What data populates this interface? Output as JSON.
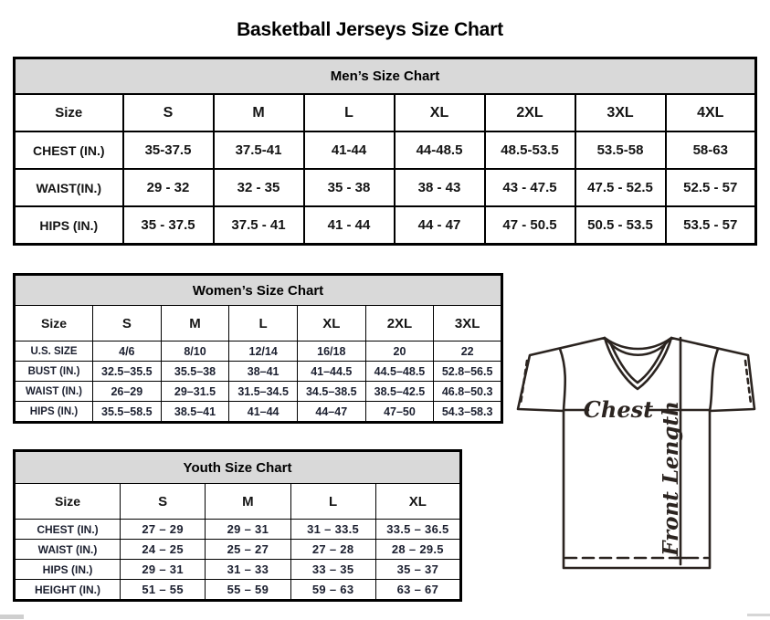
{
  "title": "Basketball Jerseys Size Chart",
  "tables": {
    "men": {
      "title": "Men’s Size Chart",
      "columns": [
        "Size",
        "S",
        "M",
        "L",
        "XL",
        "2XL",
        "3XL",
        "4XL"
      ],
      "rows": [
        {
          "label": "CHEST (IN.)",
          "values": [
            "35-37.5",
            "37.5-41",
            "41-44",
            "44-48.5",
            "48.5-53.5",
            "53.5-58",
            "58-63"
          ]
        },
        {
          "label": "WAIST(IN.)",
          "values": [
            "29 - 32",
            "32 - 35",
            "35 - 38",
            "38 - 43",
            "43 - 47.5",
            "47.5 - 52.5",
            "52.5 - 57"
          ]
        },
        {
          "label": "HIPS (IN.)",
          "values": [
            "35 - 37.5",
            "37.5 - 41",
            "41 - 44",
            "44 - 47",
            "47 - 50.5",
            "50.5 - 53.5",
            "53.5 - 57"
          ]
        }
      ]
    },
    "women": {
      "title": "Women’s Size Chart",
      "columns": [
        "Size",
        "S",
        "M",
        "L",
        "XL",
        "2XL",
        "3XL"
      ],
      "rows": [
        {
          "label": "U.S. SIZE",
          "values": [
            "4/6",
            "8/10",
            "12/14",
            "16/18",
            "20",
            "22"
          ]
        },
        {
          "label": "BUST (IN.)",
          "values": [
            "32.5–35.5",
            "35.5–38",
            "38–41",
            "41–44.5",
            "44.5–48.5",
            "52.8–56.5"
          ]
        },
        {
          "label": "WAIST (IN.)",
          "values": [
            "26–29",
            "29–31.5",
            "31.5–34.5",
            "34.5–38.5",
            "38.5–42.5",
            "46.8–50.3"
          ]
        },
        {
          "label": "HIPS (IN.)",
          "values": [
            "35.5–58.5",
            "38.5–41",
            "41–44",
            "44–47",
            "47–50",
            "54.3–58.3"
          ]
        }
      ]
    },
    "youth": {
      "title": "Youth Size Chart",
      "columns": [
        "Size",
        "S",
        "M",
        "L",
        "XL"
      ],
      "rows": [
        {
          "label": "CHEST (IN.)",
          "values": [
            "27 – 29",
            "29 – 31",
            "31 – 33.5",
            "33.5 – 36.5"
          ]
        },
        {
          "label": "WAIST (IN.)",
          "values": [
            "24 – 25",
            "25 – 27",
            "27 – 28",
            "28 – 29.5"
          ]
        },
        {
          "label": "HIPS (IN.)",
          "values": [
            "29 – 31",
            "31 – 33",
            "33 – 35",
            "35 – 37"
          ]
        },
        {
          "label": "HEIGHT (IN.)",
          "values": [
            "51 – 55",
            "55 – 59",
            "59 – 63",
            "63 – 67"
          ]
        }
      ]
    }
  },
  "diagram": {
    "chest_label": "Chest",
    "front_length_label": "Front Length"
  },
  "colors": {
    "band_bg": "#d9d9d9",
    "table_border": "#000000",
    "diagram_ink": "#2b2420"
  }
}
